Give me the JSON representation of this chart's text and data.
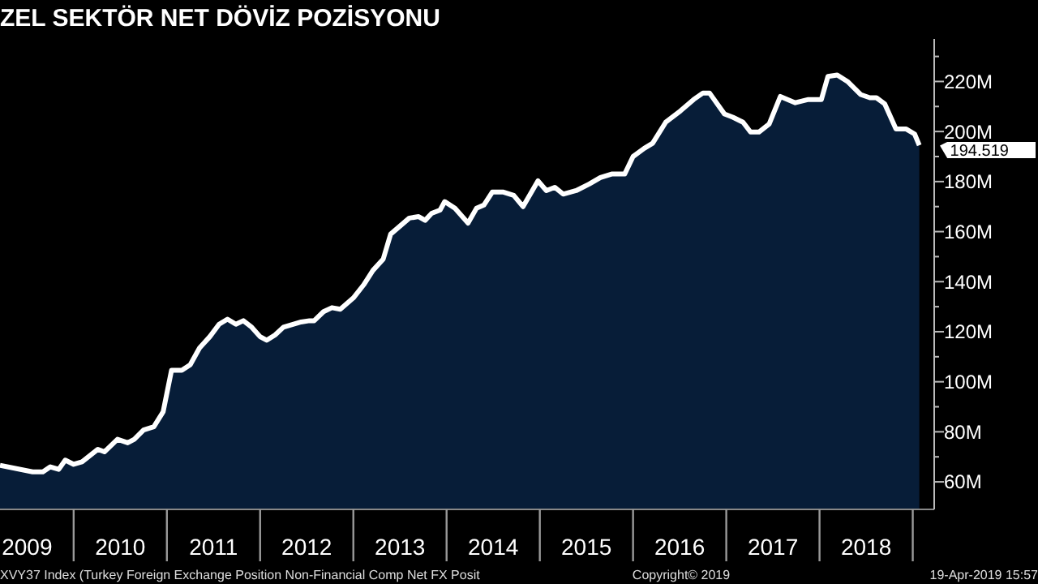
{
  "chart_data": {
    "type": "area",
    "title": "ZEL SEKTÖR NET DÖVİZ POZİSYONU",
    "x": [
      2009.21,
      2009.56,
      2009.67,
      2009.75,
      2009.84,
      2009.91,
      2010.0,
      2010.09,
      2010.26,
      2010.33,
      2010.47,
      2010.58,
      2010.65,
      2010.75,
      2010.86,
      2010.96,
      2011.05,
      2011.16,
      2011.25,
      2011.35,
      2011.46,
      2011.56,
      2011.65,
      2011.74,
      2011.82,
      2011.91,
      2012.0,
      2012.07,
      2012.16,
      2012.25,
      2012.44,
      2012.53,
      2012.58,
      2012.68,
      2012.77,
      2012.86,
      2013.0,
      2013.11,
      2013.21,
      2013.32,
      2013.4,
      2013.6,
      2013.7,
      2013.77,
      2013.84,
      2013.93,
      2013.98,
      2014.09,
      2014.23,
      2014.32,
      2014.4,
      2014.49,
      2014.61,
      2014.72,
      2014.82,
      2014.98,
      2015.07,
      2015.16,
      2015.25,
      2015.39,
      2015.53,
      2015.65,
      2015.77,
      2015.91,
      2016.0,
      2016.12,
      2016.21,
      2016.35,
      2016.51,
      2016.65,
      2016.75,
      2016.82,
      2016.98,
      2017.07,
      2017.18,
      2017.26,
      2017.35,
      2017.46,
      2017.58,
      2017.74,
      2017.88,
      2018.02,
      2018.09,
      2018.19,
      2018.3,
      2018.44,
      2018.54,
      2018.61,
      2018.7,
      2018.82,
      2018.93,
      2019.02,
      2019.07
    ],
    "series": [
      {
        "color": "#071d38",
        "values": [
          66.6,
          64,
          64,
          66,
          65,
          68.7,
          67,
          68,
          73,
          72,
          77,
          75.6,
          77,
          80.7,
          82,
          88,
          104.6,
          104.6,
          106.8,
          113.5,
          118,
          123,
          125,
          123,
          124.4,
          121.8,
          118,
          116.6,
          118.7,
          121.8,
          123.9,
          124.4,
          124.4,
          128,
          129.6,
          129,
          133.5,
          138.7,
          144.5,
          149,
          159,
          165.4,
          166,
          164.5,
          167.3,
          168.6,
          172,
          169.3,
          163.4,
          169.3,
          170.6,
          175.8,
          175.8,
          174.5,
          170,
          180.3,
          176.4,
          177.7,
          175,
          176.4,
          179,
          181.6,
          183,
          183,
          190,
          193.3,
          195.3,
          203.7,
          208.3,
          212.8,
          215.4,
          215.4,
          207,
          205.7,
          203.7,
          199.8,
          199.8,
          203,
          214,
          211.5,
          212.8,
          212.8,
          222,
          222.6,
          220,
          214.8,
          213.5,
          213.5,
          211,
          201,
          201,
          199,
          194.5
        ]
      }
    ],
    "xlim": [
      2009.21,
      2019.23
    ],
    "xticks": [
      {
        "value": 2009.5,
        "label": "2009"
      },
      {
        "value": 2010,
        "label": null
      },
      {
        "value": 2010.5,
        "label": "2010"
      },
      {
        "value": 2011,
        "label": null
      },
      {
        "value": 2011.5,
        "label": "2011"
      },
      {
        "value": 2012,
        "label": null
      },
      {
        "value": 2012.5,
        "label": "2012"
      },
      {
        "value": 2013,
        "label": null
      },
      {
        "value": 2013.5,
        "label": "2013"
      },
      {
        "value": 2014,
        "label": null
      },
      {
        "value": 2014.5,
        "label": "2014"
      },
      {
        "value": 2015,
        "label": null
      },
      {
        "value": 2015.5,
        "label": "2015"
      },
      {
        "value": 2016,
        "label": null
      },
      {
        "value": 2016.5,
        "label": "2016"
      },
      {
        "value": 2017,
        "label": null
      },
      {
        "value": 2017.5,
        "label": "2017"
      },
      {
        "value": 2018,
        "label": null
      },
      {
        "value": 2018.5,
        "label": "2018"
      },
      {
        "value": 2019,
        "label": null
      }
    ],
    "ylim": [
      49,
      237
    ],
    "yticks": [
      {
        "value": 60,
        "label": "60M"
      },
      {
        "value": 70,
        "label": null
      },
      {
        "value": 80,
        "label": "80M"
      },
      {
        "value": 90,
        "label": null
      },
      {
        "value": 100,
        "label": "100M"
      },
      {
        "value": 110,
        "label": null
      },
      {
        "value": 120,
        "label": "120M"
      },
      {
        "value": 130,
        "label": null
      },
      {
        "value": 140,
        "label": "140M"
      },
      {
        "value": 150,
        "label": null
      },
      {
        "value": 160,
        "label": "160M"
      },
      {
        "value": 170,
        "label": null
      },
      {
        "value": 180,
        "label": "180M"
      },
      {
        "value": 190,
        "label": null
      },
      {
        "value": 200,
        "label": "200M"
      },
      {
        "value": 210,
        "label": null
      },
      {
        "value": 220,
        "label": "220M"
      },
      {
        "value": 230,
        "label": null
      }
    ],
    "annotations": [
      {
        "text": "194.519",
        "x": 2019.07,
        "y": 194.5
      },
      "XVY37 Index (Turkey Foreign Exchange Position Non-Financial Comp Net FX Posit",
      "Copyright© 2019",
      "19-Apr-2019 15:57"
    ]
  }
}
